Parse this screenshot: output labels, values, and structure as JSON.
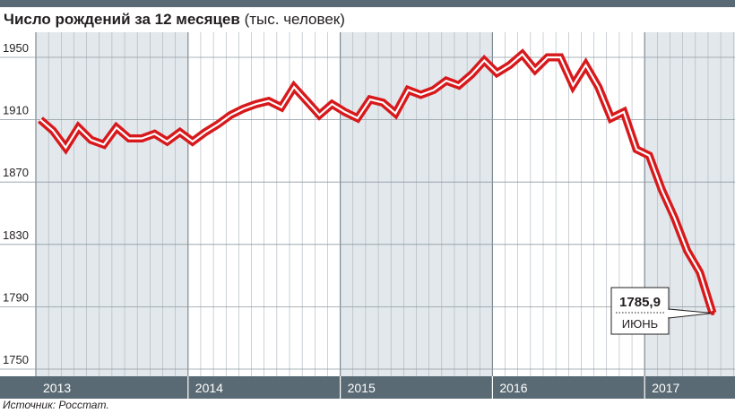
{
  "header": {
    "title": "Число рождений за 12 месяцев",
    "unit": "(тыс. человек)"
  },
  "source": "Источник: Росстат.",
  "colors": {
    "line": "#d7191c",
    "frame": "#5a6a74",
    "band": "#e3e8ec"
  },
  "chart_data": {
    "type": "line",
    "title": "Число рождений за 12 месяцев",
    "ylabel": "(тыс. человек)",
    "xlabel": "",
    "ylim": [
      1750,
      1970
    ],
    "yticks": [
      "1950",
      "1910",
      "1870",
      "1830",
      "1790",
      "1750"
    ],
    "years": [
      "2013",
      "2014",
      "2015",
      "2016",
      "2017"
    ],
    "grid": true,
    "x_start": "2013-01",
    "series": [
      {
        "values": [
          1910,
          1903,
          1892,
          1905,
          1897,
          1894,
          1905,
          1898,
          1898,
          1901,
          1896,
          1902,
          1896,
          1902,
          1907,
          1913,
          1917,
          1920,
          1922,
          1918,
          1931,
          1922,
          1913,
          1920,
          1915,
          1911,
          1923,
          1921,
          1914,
          1929,
          1926,
          1929,
          1935,
          1932,
          1939,
          1948,
          1940,
          1945,
          1952,
          1942,
          1950,
          1950,
          1932,
          1945,
          1931,
          1911,
          1915,
          1891,
          1887,
          1865,
          1847,
          1826,
          1812,
          1785.9
        ]
      }
    ],
    "callout": {
      "value": "1785,9",
      "month": "ИЮНЬ"
    }
  }
}
